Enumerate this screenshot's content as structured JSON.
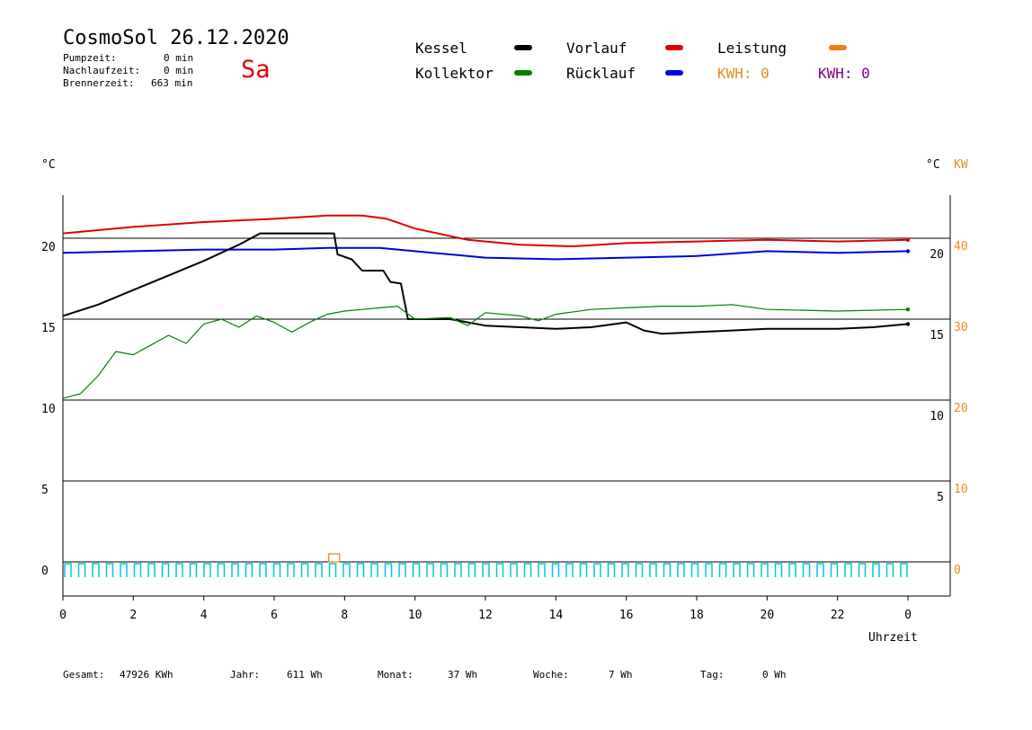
{
  "header": {
    "title": "CosmoSol 26.12.2020",
    "pumpzeit_label": "Pumpzeit:",
    "pumpzeit_value": "0 min",
    "nachlauf_label": "Nachlaufzeit:",
    "nachlauf_value": "0 min",
    "brenner_label": "Brennerzeit:",
    "brenner_value": "663 min",
    "weekday": "Sa"
  },
  "legend": {
    "kessel": "Kessel",
    "kollektor": "Kollektor",
    "vorlauf": "Vorlauf",
    "ruecklauf": "Rücklauf",
    "leistung": "Leistung",
    "kwh1": "KWH: 0",
    "kwh2": "KWH: 0"
  },
  "colors": {
    "kessel": "#000000",
    "kollektor": "#008000",
    "vorlauf": "#e00000",
    "ruecklauf": "#0000e0",
    "leistung": "#f08010",
    "kwh1": "#e09020",
    "kwh2": "#800080",
    "pump": "#00c8d8"
  },
  "footer": {
    "gesamt_label": "Gesamt:",
    "gesamt_value": "47926 KWh",
    "jahr_label": "Jahr:",
    "jahr_value": "611 Wh",
    "monat_label": "Monat:",
    "monat_value": "37 Wh",
    "woche_label": "Woche:",
    "woche_value": "7 Wh",
    "tag_label": "Tag:",
    "tag_value": "0 Wh"
  },
  "chart_data": {
    "type": "line",
    "xlabel": "Uhrzeit",
    "xlim": [
      0,
      24
    ],
    "x_ticks": [
      "0",
      "2",
      "4",
      "6",
      "8",
      "10",
      "12",
      "14",
      "16",
      "18",
      "20",
      "22",
      "0"
    ],
    "y_left_label": "°C",
    "y_left_ticks": [
      "20",
      "15",
      "10",
      "5",
      "0"
    ],
    "y_left_lim": [
      0,
      25
    ],
    "y_right_label": "°C",
    "y_right_ticks": [
      "20",
      "15",
      "10",
      "5"
    ],
    "y_right2_label": "KW",
    "y_right2_ticks": [
      "40",
      "30",
      "20",
      "10",
      "0"
    ],
    "series": [
      {
        "name": "Vorlauf",
        "key": "vorlauf",
        "points": [
          [
            0,
            20.3
          ],
          [
            2,
            20.7
          ],
          [
            4,
            21.0
          ],
          [
            6,
            21.2
          ],
          [
            7.5,
            21.4
          ],
          [
            8.5,
            21.4
          ],
          [
            9.2,
            21.2
          ],
          [
            10,
            20.6
          ],
          [
            11.5,
            19.9
          ],
          [
            13,
            19.6
          ],
          [
            14.5,
            19.5
          ],
          [
            16,
            19.7
          ],
          [
            18,
            19.8
          ],
          [
            20,
            19.9
          ],
          [
            22,
            19.8
          ],
          [
            24,
            19.9
          ]
        ]
      },
      {
        "name": "Rücklauf",
        "key": "ruecklauf",
        "points": [
          [
            0,
            19.1
          ],
          [
            2,
            19.2
          ],
          [
            4,
            19.3
          ],
          [
            6,
            19.3
          ],
          [
            7.5,
            19.4
          ],
          [
            9,
            19.4
          ],
          [
            10.5,
            19.1
          ],
          [
            12,
            18.8
          ],
          [
            14,
            18.7
          ],
          [
            16,
            18.8
          ],
          [
            18,
            18.9
          ],
          [
            20,
            19.2
          ],
          [
            22,
            19.1
          ],
          [
            24,
            19.2
          ]
        ]
      },
      {
        "name": "Kessel",
        "key": "kessel",
        "points": [
          [
            0,
            15.2
          ],
          [
            1,
            15.9
          ],
          [
            2,
            16.8
          ],
          [
            3,
            17.7
          ],
          [
            4,
            18.6
          ],
          [
            5,
            19.6
          ],
          [
            5.6,
            20.3
          ],
          [
            7.7,
            20.3
          ],
          [
            7.8,
            19.0
          ],
          [
            8.2,
            18.7
          ],
          [
            8.5,
            18.0
          ],
          [
            9.1,
            18.0
          ],
          [
            9.3,
            17.3
          ],
          [
            9.6,
            17.2
          ],
          [
            9.8,
            15.0
          ],
          [
            11,
            15.0
          ],
          [
            12,
            14.6
          ],
          [
            13,
            14.5
          ],
          [
            14,
            14.4
          ],
          [
            15,
            14.5
          ],
          [
            16,
            14.8
          ],
          [
            16.5,
            14.3
          ],
          [
            17,
            14.1
          ],
          [
            18,
            14.2
          ],
          [
            19,
            14.3
          ],
          [
            20,
            14.4
          ],
          [
            22,
            14.4
          ],
          [
            23,
            14.5
          ],
          [
            24,
            14.7
          ]
        ]
      },
      {
        "name": "Kollektor",
        "key": "kollektor",
        "points": [
          [
            0,
            10.1
          ],
          [
            0.5,
            10.4
          ],
          [
            1,
            11.5
          ],
          [
            1.5,
            13.0
          ],
          [
            2,
            12.8
          ],
          [
            2.5,
            13.4
          ],
          [
            3,
            14.0
          ],
          [
            3.5,
            13.5
          ],
          [
            4,
            14.7
          ],
          [
            4.5,
            15.0
          ],
          [
            5,
            14.5
          ],
          [
            5.5,
            15.2
          ],
          [
            6,
            14.8
          ],
          [
            6.5,
            14.2
          ],
          [
            7,
            14.8
          ],
          [
            7.5,
            15.3
          ],
          [
            8,
            15.5
          ],
          [
            8.5,
            15.6
          ],
          [
            9,
            15.7
          ],
          [
            9.5,
            15.8
          ],
          [
            10,
            15.0
          ],
          [
            11,
            15.1
          ],
          [
            11.5,
            14.6
          ],
          [
            12,
            15.4
          ],
          [
            13,
            15.2
          ],
          [
            13.5,
            14.9
          ],
          [
            14,
            15.3
          ],
          [
            15,
            15.6
          ],
          [
            16,
            15.7
          ],
          [
            17,
            15.8
          ],
          [
            18,
            15.8
          ],
          [
            19,
            15.9
          ],
          [
            20,
            15.6
          ],
          [
            22,
            15.5
          ],
          [
            24,
            15.6
          ]
        ]
      }
    ]
  }
}
